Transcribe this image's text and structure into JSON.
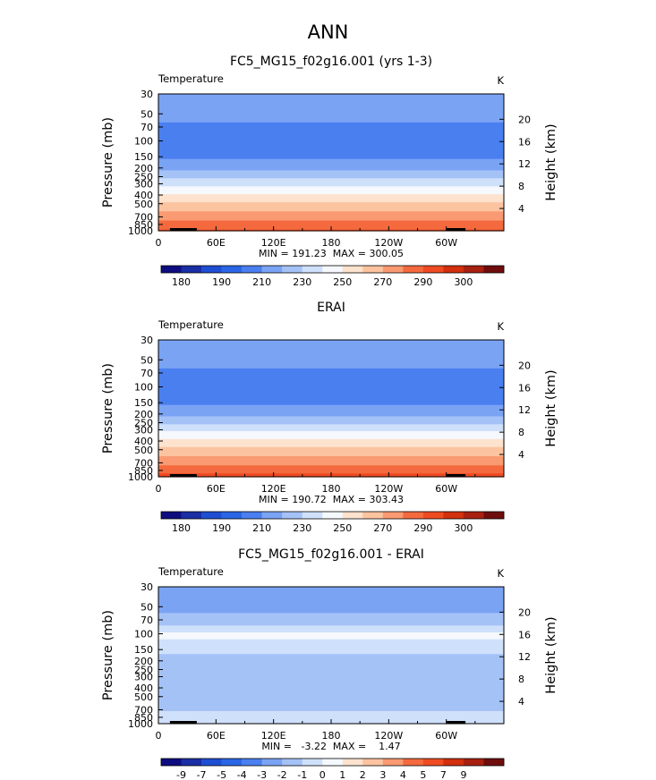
{
  "figure": {
    "title": "ANN"
  },
  "chart_data": [
    {
      "type": "heatmap",
      "title": "FC5_MG15_f02g16.001 (yrs 1-3)",
      "variable": "Temperature",
      "units": "K",
      "ylabel": "Pressure (mb)",
      "ylabel_right": "Height (km)",
      "x_ticks": [
        "0",
        "60E",
        "120E",
        "180",
        "120W",
        "60W"
      ],
      "x_tick_values": [
        0,
        60,
        120,
        180,
        240,
        300
      ],
      "xlim": [
        0,
        360
      ],
      "y_ticks": [
        "30",
        "50",
        "70",
        "100",
        "150",
        "200",
        "250",
        "300",
        "400",
        "500",
        "700",
        "850",
        "1000"
      ],
      "y_tick_values": [
        30,
        50,
        70,
        100,
        150,
        200,
        250,
        300,
        400,
        500,
        700,
        850,
        1000
      ],
      "ylim": [
        1000,
        30
      ],
      "y_scale": "log",
      "y_right_ticks": [
        "4",
        "8",
        "12",
        "16",
        "20"
      ],
      "y_right_values": [
        4,
        8,
        12,
        16,
        20
      ],
      "stats": "MIN = 191.23  MAX = 300.05",
      "min": 191.23,
      "max": 300.05,
      "colorbar": {
        "levels": [
          180,
          185,
          190,
          200,
          210,
          220,
          230,
          240,
          250,
          260,
          270,
          280,
          290,
          295,
          300
        ],
        "labels": [
          "180",
          "190",
          "210",
          "230",
          "250",
          "270",
          "290",
          "300"
        ],
        "colors": [
          "#0d0d80",
          "#1a2ea5",
          "#1e4ed2",
          "#2a66e6",
          "#4a7ff0",
          "#7aa3f4",
          "#a5c2f7",
          "#cfe0fb",
          "#f5f8fd",
          "#fde2cd",
          "#fcc3a0",
          "#f99a72",
          "#f46a3e",
          "#ef4b22",
          "#d2300e",
          "#a82010",
          "#6f0d0d"
        ]
      },
      "profile": [
        {
          "p": 30,
          "t": 217
        },
        {
          "p": 50,
          "t": 213
        },
        {
          "p": 70,
          "t": 208
        },
        {
          "p": 100,
          "t": 203
        },
        {
          "p": 150,
          "t": 209
        },
        {
          "p": 200,
          "t": 218
        },
        {
          "p": 250,
          "t": 228
        },
        {
          "p": 300,
          "t": 238
        },
        {
          "p": 400,
          "t": 252
        },
        {
          "p": 500,
          "t": 262
        },
        {
          "p": 700,
          "t": 277
        },
        {
          "p": 850,
          "t": 285
        },
        {
          "p": 1000,
          "t": 292
        }
      ]
    },
    {
      "type": "heatmap",
      "title": "ERAI",
      "variable": "Temperature",
      "units": "K",
      "ylabel": "Pressure (mb)",
      "ylabel_right": "Height (km)",
      "x_ticks": [
        "0",
        "60E",
        "120E",
        "180",
        "120W",
        "60W"
      ],
      "x_tick_values": [
        0,
        60,
        120,
        180,
        240,
        300
      ],
      "xlim": [
        0,
        360
      ],
      "y_ticks": [
        "30",
        "50",
        "70",
        "100",
        "150",
        "200",
        "250",
        "300",
        "400",
        "500",
        "700",
        "850",
        "1000"
      ],
      "y_tick_values": [
        30,
        50,
        70,
        100,
        150,
        200,
        250,
        300,
        400,
        500,
        700,
        850,
        1000
      ],
      "ylim": [
        1000,
        30
      ],
      "y_scale": "log",
      "y_right_ticks": [
        "4",
        "8",
        "12",
        "16",
        "20"
      ],
      "y_right_values": [
        4,
        8,
        12,
        16,
        20
      ],
      "stats": "MIN = 190.72  MAX = 303.43",
      "min": 190.72,
      "max": 303.43,
      "colorbar": {
        "levels": [
          180,
          185,
          190,
          200,
          210,
          220,
          230,
          240,
          250,
          260,
          270,
          280,
          290,
          295,
          300
        ],
        "labels": [
          "180",
          "190",
          "210",
          "230",
          "250",
          "270",
          "290",
          "300"
        ],
        "colors": [
          "#0d0d80",
          "#1a2ea5",
          "#1e4ed2",
          "#2a66e6",
          "#4a7ff0",
          "#7aa3f4",
          "#a5c2f7",
          "#cfe0fb",
          "#f5f8fd",
          "#fde2cd",
          "#fcc3a0",
          "#f99a72",
          "#f46a3e",
          "#ef4b22",
          "#d2300e",
          "#a82010",
          "#6f0d0d"
        ]
      },
      "profile": [
        {
          "p": 30,
          "t": 217
        },
        {
          "p": 50,
          "t": 213
        },
        {
          "p": 70,
          "t": 208
        },
        {
          "p": 100,
          "t": 203
        },
        {
          "p": 150,
          "t": 209
        },
        {
          "p": 200,
          "t": 218
        },
        {
          "p": 250,
          "t": 229
        },
        {
          "p": 300,
          "t": 239
        },
        {
          "p": 400,
          "t": 253
        },
        {
          "p": 500,
          "t": 263
        },
        {
          "p": 700,
          "t": 278
        },
        {
          "p": 850,
          "t": 287
        },
        {
          "p": 1000,
          "t": 294
        }
      ]
    },
    {
      "type": "heatmap",
      "title": "FC5_MG15_f02g16.001 - ERAI",
      "variable": "Temperature",
      "units": "K",
      "ylabel": "Pressure (mb)",
      "ylabel_right": "Height (km)",
      "x_ticks": [
        "0",
        "60E",
        "120E",
        "180",
        "120W",
        "60W"
      ],
      "x_tick_values": [
        0,
        60,
        120,
        180,
        240,
        300
      ],
      "xlim": [
        0,
        360
      ],
      "y_ticks": [
        "30",
        "50",
        "70",
        "100",
        "150",
        "200",
        "250",
        "300",
        "400",
        "500",
        "700",
        "850",
        "1000"
      ],
      "y_tick_values": [
        30,
        50,
        70,
        100,
        150,
        200,
        250,
        300,
        400,
        500,
        700,
        850,
        1000
      ],
      "ylim": [
        1000,
        30
      ],
      "y_scale": "log",
      "y_right_ticks": [
        "4",
        "8",
        "12",
        "16",
        "20"
      ],
      "y_right_values": [
        4,
        8,
        12,
        16,
        20
      ],
      "stats": "MIN =   -3.22  MAX =    1.47",
      "min": -3.22,
      "max": 1.47,
      "colorbar": {
        "levels": [
          -9,
          -7,
          -5,
          -4,
          -3,
          -2,
          -1,
          0,
          1,
          2,
          3,
          4,
          5,
          7,
          9
        ],
        "labels": [
          "-9",
          "-7",
          "-5",
          "-4",
          "-3",
          "-2",
          "-1",
          "0",
          "1",
          "2",
          "3",
          "4",
          "5",
          "7",
          "9"
        ],
        "colors": [
          "#0d0d80",
          "#1a2ea5",
          "#1e4ed2",
          "#2a66e6",
          "#4a7ff0",
          "#7aa3f4",
          "#a5c2f7",
          "#cfe0fb",
          "#f5f8fd",
          "#fde2cd",
          "#fcc3a0",
          "#f99a72",
          "#f46a3e",
          "#ef4b22",
          "#d2300e",
          "#a82010",
          "#6f0d0d"
        ]
      },
      "profile": [
        {
          "p": 30,
          "t": -2.3
        },
        {
          "p": 50,
          "t": -2.2
        },
        {
          "p": 70,
          "t": -1.7
        },
        {
          "p": 100,
          "t": 0.3
        },
        {
          "p": 150,
          "t": -0.7
        },
        {
          "p": 200,
          "t": -1.5
        },
        {
          "p": 300,
          "t": -1.2
        },
        {
          "p": 400,
          "t": -1.1
        },
        {
          "p": 500,
          "t": -1.2
        },
        {
          "p": 700,
          "t": -1.1
        },
        {
          "p": 850,
          "t": -0.4
        },
        {
          "p": 1000,
          "t": -0.6
        }
      ]
    }
  ]
}
